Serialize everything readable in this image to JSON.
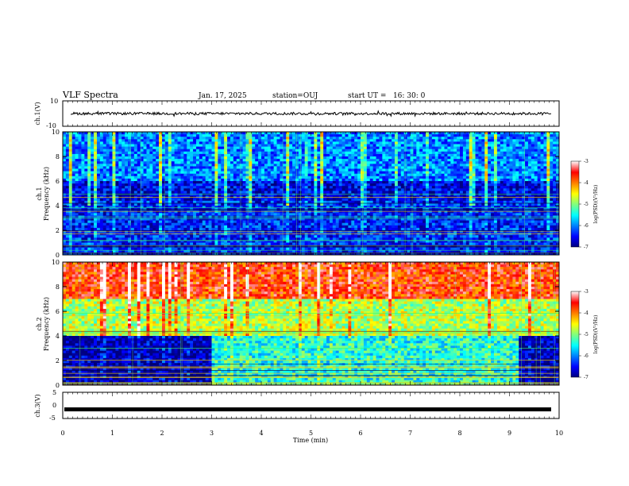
{
  "header": {
    "title": "VLF Spectra",
    "date": "Jan. 17, 2025",
    "station": "station=OUJ",
    "start": "start UT =   16: 30: 0"
  },
  "chart_data": [
    {
      "type": "line",
      "ylabel": "ch.1(V)",
      "ylim": [
        -10,
        10
      ],
      "y_ticks": [
        "10",
        "-10"
      ],
      "series": [
        {
          "mean": 0,
          "amplitude_approx": 1
        }
      ]
    },
    {
      "type": "heatmap",
      "ylabel": "ch.1\nFrequency (kHz)",
      "ylim": [
        0,
        10
      ],
      "y_ticks": [
        "0",
        "2",
        "4",
        "6",
        "8",
        "10"
      ],
      "colorbar": {
        "label": "log(PSD)(V²/Hz)",
        "range": [
          -7,
          -3
        ],
        "ticks": [
          "-3",
          "-4",
          "-5",
          "-6",
          "-7"
        ]
      },
      "description_levels": [
        {
          "f_range": [
            6,
            10
          ],
          "level": -6.0
        },
        {
          "f_range": [
            4.5,
            6
          ],
          "level": -6.6
        },
        {
          "f_range": [
            0,
            4.5
          ],
          "level": -6.4
        }
      ]
    },
    {
      "type": "heatmap",
      "ylabel": "ch.2\nFrequency (kHz)",
      "ylim": [
        0,
        10
      ],
      "y_ticks": [
        "0",
        "2",
        "4",
        "6",
        "8",
        "10"
      ],
      "colorbar": {
        "label": "log(PSD)(V²/Hz)",
        "range": [
          -7,
          -3
        ],
        "ticks": [
          "-3",
          "-4",
          "-5",
          "-6",
          "-7"
        ]
      },
      "description_levels": [
        {
          "f_range": [
            7,
            10
          ],
          "level": -3.7
        },
        {
          "f_range": [
            4,
            7
          ],
          "level": -4.8
        },
        {
          "f_range": [
            0,
            4
          ],
          "level": -6.2
        }
      ]
    },
    {
      "type": "line",
      "ylabel": "ch.3(V)",
      "ylim": [
        -5,
        5
      ],
      "y_ticks": [
        "5",
        "0",
        "-5"
      ],
      "series": [
        {
          "mean": -1.5
        }
      ]
    }
  ],
  "x_axis": {
    "label": "Time (min)",
    "range": [
      0,
      10
    ],
    "ticks": [
      "0",
      "1",
      "2",
      "3",
      "4",
      "5",
      "6",
      "7",
      "8",
      "9",
      "10"
    ]
  }
}
